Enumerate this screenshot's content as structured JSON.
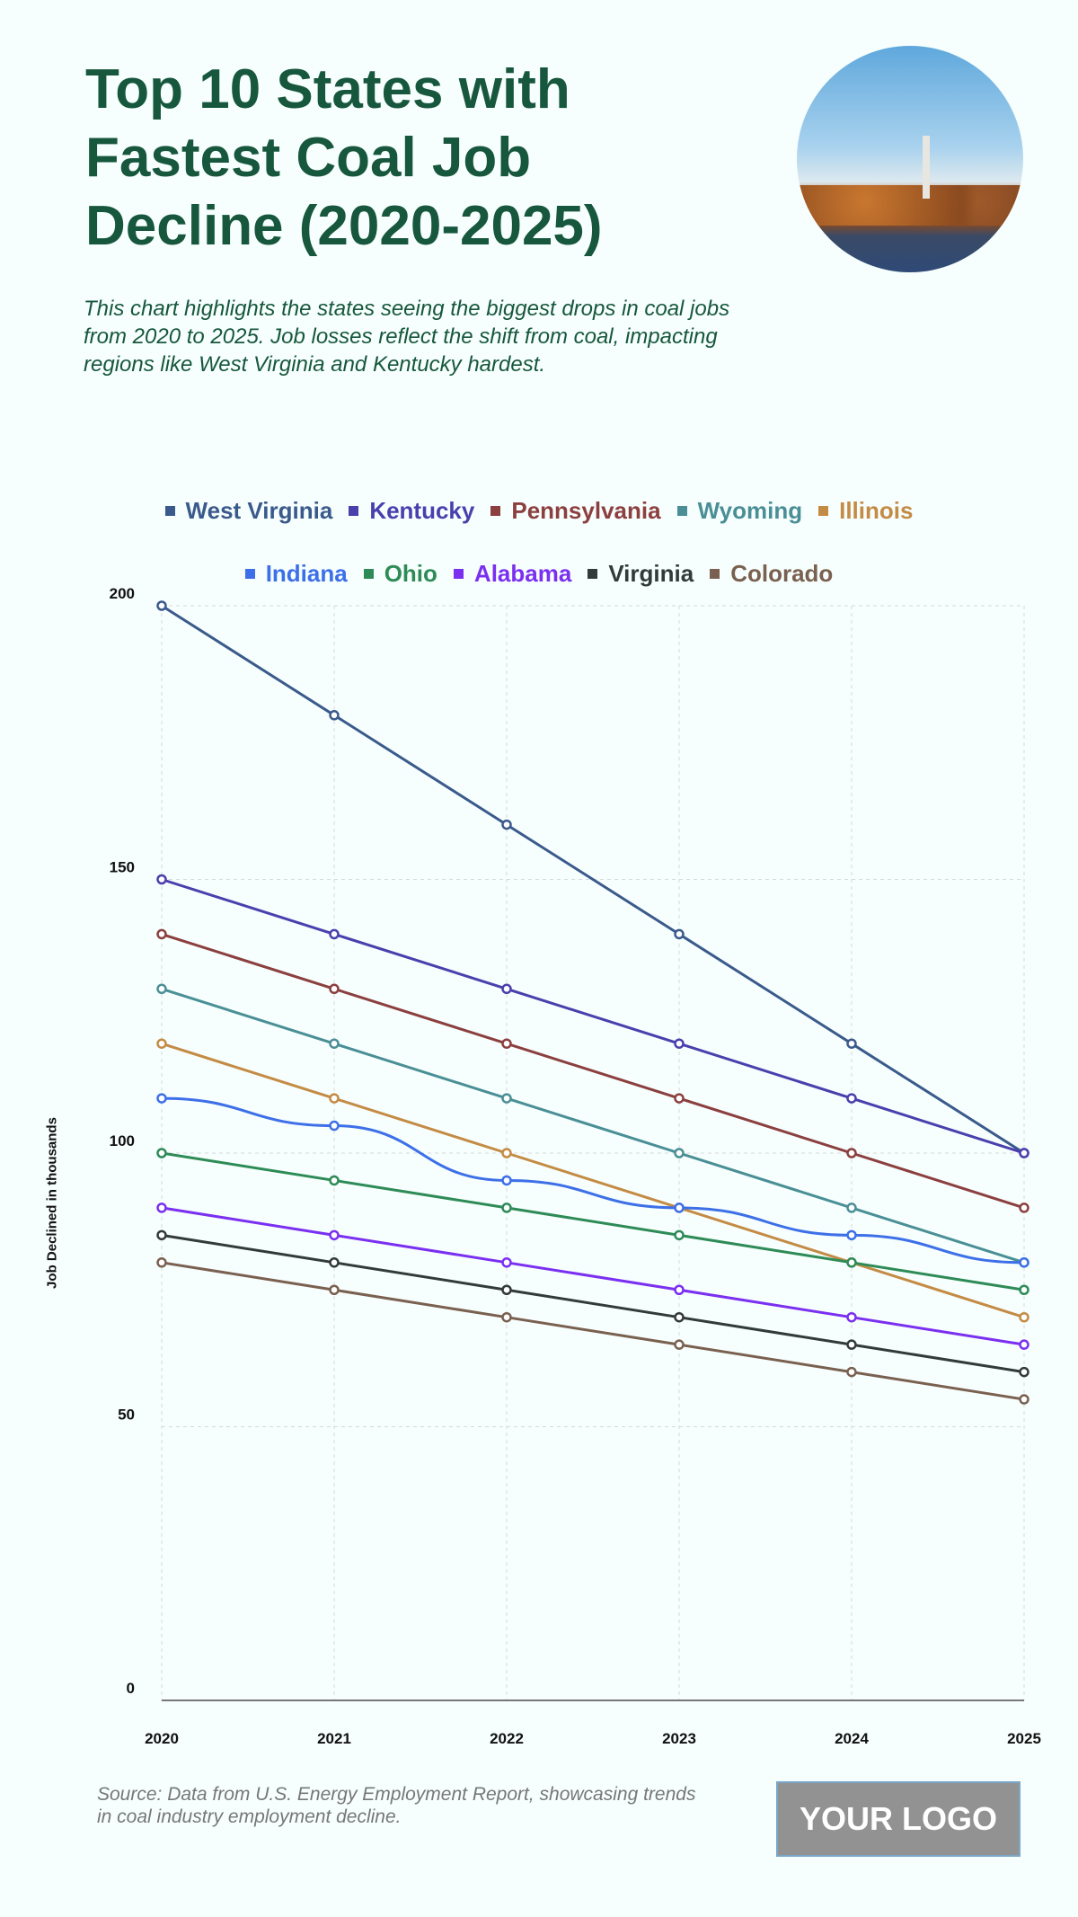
{
  "header": {
    "title": "Top 10 States with Fastest Coal Job Decline (2020-2025)",
    "subtitle": "This chart highlights the states seeing the biggest drops in coal jobs from 2020 to 2025. Job losses reflect the shift from coal, impacting regions like West Virginia and Kentucky hardest."
  },
  "footer": {
    "source": "Source: Data from U.S. Energy Employment Report, showcasing trends in coal industry employment decline.",
    "logo": "YOUR LOGO"
  },
  "chart_data": {
    "type": "line",
    "title": "Top 10 States with Fastest Coal Job Decline (2020-2025)",
    "xlabel": "",
    "ylabel": "Job Declined in thousands",
    "x": [
      "2020",
      "2021",
      "2022",
      "2023",
      "2024",
      "2025"
    ],
    "ylim": [
      0,
      200
    ],
    "yticks": [
      0,
      50,
      100,
      150,
      200
    ],
    "grid": true,
    "legend_position": "top-center",
    "series": [
      {
        "name": "West Virginia",
        "color": "#3b5a8c",
        "values": [
          200,
          180,
          160,
          140,
          120,
          100
        ]
      },
      {
        "name": "Kentucky",
        "color": "#4b3fae",
        "values": [
          150,
          140,
          130,
          120,
          110,
          100
        ]
      },
      {
        "name": "Pennsylvania",
        "color": "#8c3f3f",
        "values": [
          140,
          130,
          120,
          110,
          100,
          90
        ]
      },
      {
        "name": "Wyoming",
        "color": "#4a8f96",
        "values": [
          130,
          120,
          110,
          100,
          90,
          80
        ]
      },
      {
        "name": "Illinois",
        "color": "#c48b45",
        "values": [
          120,
          110,
          100,
          90,
          80,
          70
        ]
      },
      {
        "name": "Indiana",
        "color": "#3d6fe8",
        "values": [
          110,
          105,
          95,
          90,
          85,
          80
        ]
      },
      {
        "name": "Ohio",
        "color": "#2e8b57",
        "values": [
          100,
          95,
          90,
          85,
          80,
          75
        ]
      },
      {
        "name": "Alabama",
        "color": "#7b2ff0",
        "values": [
          90,
          85,
          80,
          75,
          70,
          65
        ]
      },
      {
        "name": "Virginia",
        "color": "#333a3a",
        "values": [
          85,
          80,
          75,
          70,
          65,
          60
        ]
      },
      {
        "name": "Colorado",
        "color": "#7a6050",
        "values": [
          80,
          75,
          70,
          65,
          60,
          55
        ]
      }
    ]
  }
}
